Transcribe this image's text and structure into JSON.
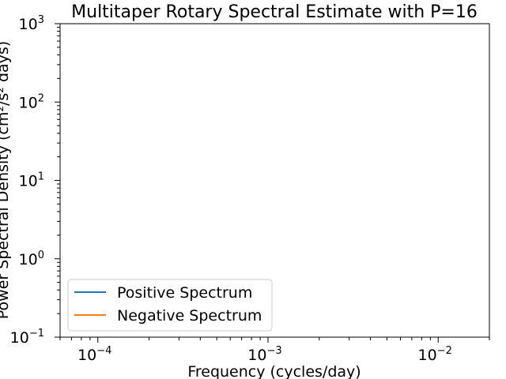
{
  "chart_data": {
    "type": "line",
    "title": "Multitaper Rotary Spectral Estimate with P=16",
    "xlabel": "Frequency (cycles/day)",
    "ylabel": "Power Spectral Density (cm²/s² days)",
    "x_scale": "log",
    "y_scale": "log",
    "xlim": [
      6e-05,
      0.02
    ],
    "ylim": [
      0.1,
      1000
    ],
    "x_ticks": [
      {
        "value": 0.0001,
        "base": "10",
        "exp": "−4"
      },
      {
        "value": 0.001,
        "base": "10",
        "exp": "−3"
      },
      {
        "value": 0.01,
        "base": "10",
        "exp": "−2"
      }
    ],
    "y_ticks": [
      {
        "value": 0.1,
        "base": "10",
        "exp": "−1"
      },
      {
        "value": 1,
        "base": "10",
        "exp": "0"
      },
      {
        "value": 10,
        "base": "10",
        "exp": "1"
      },
      {
        "value": 100,
        "base": "10",
        "exp": "2"
      },
      {
        "value": 1000,
        "base": "10",
        "exp": "3"
      }
    ],
    "grid": false,
    "legend_position": "lower-left",
    "series": [
      {
        "name": "Positive Spectrum",
        "color": "#1f77b4",
        "x": [],
        "y": []
      },
      {
        "name": "Negative Spectrum",
        "color": "#ff7f0e",
        "x": [],
        "y": []
      }
    ]
  }
}
